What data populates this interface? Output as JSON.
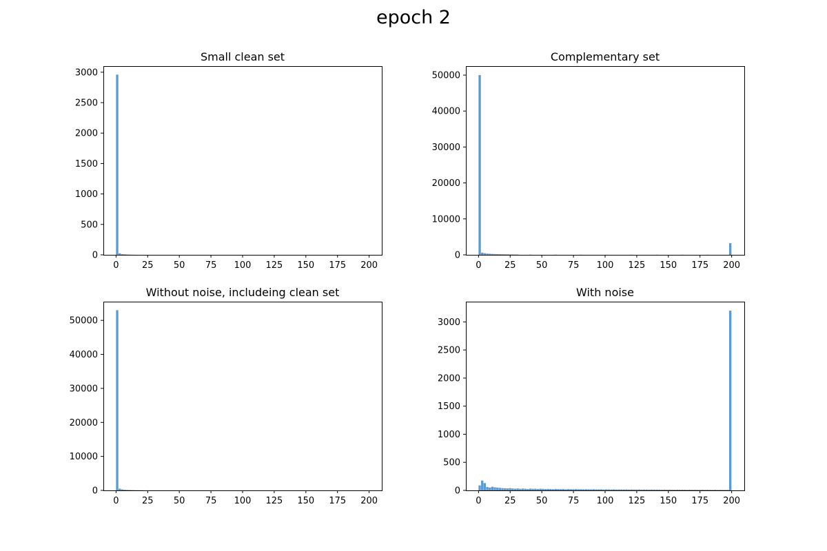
{
  "figure": {
    "title": "epoch 2"
  },
  "chart_data": [
    {
      "type": "bar",
      "title": "Small clean set",
      "xlabel": "",
      "ylabel": "",
      "xlim": [
        -10,
        210
      ],
      "ylim": [
        0,
        3100
      ],
      "xticks": [
        0,
        25,
        50,
        75,
        100,
        125,
        150,
        175,
        200
      ],
      "yticks": [
        0,
        500,
        1000,
        1500,
        2000,
        2500,
        3000
      ],
      "bin_width": 2,
      "bins": [
        {
          "x": 0,
          "y": 2960
        },
        {
          "x": 2,
          "y": 25
        },
        {
          "x": 4,
          "y": 10
        },
        {
          "x": 6,
          "y": 8
        },
        {
          "x": 8,
          "y": 5
        },
        {
          "x": 10,
          "y": 3
        },
        {
          "x": 12,
          "y": 2
        },
        {
          "x": 14,
          "y": 1
        }
      ],
      "color": "#5b9bd0"
    },
    {
      "type": "bar",
      "title": "Complementary set",
      "xlabel": "",
      "ylabel": "",
      "xlim": [
        -10,
        210
      ],
      "ylim": [
        0,
        52500
      ],
      "xticks": [
        0,
        25,
        50,
        75,
        100,
        125,
        150,
        175,
        200
      ],
      "yticks": [
        0,
        10000,
        20000,
        30000,
        40000,
        50000
      ],
      "bin_width": 2,
      "bins": [
        {
          "x": 0,
          "y": 50000
        },
        {
          "x": 2,
          "y": 600
        },
        {
          "x": 4,
          "y": 450
        },
        {
          "x": 6,
          "y": 350
        },
        {
          "x": 8,
          "y": 300
        },
        {
          "x": 10,
          "y": 250
        },
        {
          "x": 12,
          "y": 230
        },
        {
          "x": 14,
          "y": 200
        },
        {
          "x": 16,
          "y": 180
        },
        {
          "x": 18,
          "y": 160
        },
        {
          "x": 20,
          "y": 150
        },
        {
          "x": 22,
          "y": 140
        },
        {
          "x": 24,
          "y": 120
        },
        {
          "x": 26,
          "y": 100
        },
        {
          "x": 28,
          "y": 90
        },
        {
          "x": 30,
          "y": 80
        },
        {
          "x": 40,
          "y": 60
        },
        {
          "x": 60,
          "y": 50
        },
        {
          "x": 80,
          "y": 45
        },
        {
          "x": 100,
          "y": 40
        },
        {
          "x": 120,
          "y": 35
        },
        {
          "x": 140,
          "y": 35
        },
        {
          "x": 160,
          "y": 30
        },
        {
          "x": 180,
          "y": 30
        },
        {
          "x": 198,
          "y": 3250
        }
      ],
      "color": "#5b9bd0"
    },
    {
      "type": "bar",
      "title": "Without noise, includeing clean set",
      "xlabel": "",
      "ylabel": "",
      "xlim": [
        -10,
        210
      ],
      "ylim": [
        0,
        55500
      ],
      "xticks": [
        0,
        25,
        50,
        75,
        100,
        125,
        150,
        175,
        200
      ],
      "yticks": [
        0,
        10000,
        20000,
        30000,
        40000,
        50000
      ],
      "bin_width": 2,
      "bins": [
        {
          "x": 0,
          "y": 53000
        },
        {
          "x": 2,
          "y": 500
        },
        {
          "x": 4,
          "y": 300
        },
        {
          "x": 6,
          "y": 200
        },
        {
          "x": 8,
          "y": 150
        },
        {
          "x": 10,
          "y": 120
        },
        {
          "x": 12,
          "y": 100
        },
        {
          "x": 14,
          "y": 80
        },
        {
          "x": 16,
          "y": 70
        },
        {
          "x": 18,
          "y": 60
        },
        {
          "x": 20,
          "y": 50
        }
      ],
      "color": "#5b9bd0"
    },
    {
      "type": "bar",
      "title": "With noise",
      "xlabel": "",
      "ylabel": "",
      "xlim": [
        -10,
        210
      ],
      "ylim": [
        0,
        3360
      ],
      "xticks": [
        0,
        25,
        50,
        75,
        100,
        125,
        150,
        175,
        200
      ],
      "yticks": [
        0,
        500,
        1000,
        1500,
        2000,
        2500,
        3000
      ],
      "bin_width": 2,
      "bins": [
        {
          "x": 0,
          "y": 90
        },
        {
          "x": 2,
          "y": 175
        },
        {
          "x": 4,
          "y": 130
        },
        {
          "x": 6,
          "y": 60
        },
        {
          "x": 8,
          "y": 50
        },
        {
          "x": 10,
          "y": 65
        },
        {
          "x": 12,
          "y": 55
        },
        {
          "x": 14,
          "y": 50
        },
        {
          "x": 16,
          "y": 45
        },
        {
          "x": 18,
          "y": 40
        },
        {
          "x": 20,
          "y": 38
        },
        {
          "x": 22,
          "y": 36
        },
        {
          "x": 24,
          "y": 40
        },
        {
          "x": 26,
          "y": 34
        },
        {
          "x": 28,
          "y": 30
        },
        {
          "x": 30,
          "y": 35
        },
        {
          "x": 32,
          "y": 28
        },
        {
          "x": 34,
          "y": 33
        },
        {
          "x": 36,
          "y": 30
        },
        {
          "x": 38,
          "y": 25
        },
        {
          "x": 40,
          "y": 32
        },
        {
          "x": 42,
          "y": 28
        },
        {
          "x": 44,
          "y": 30
        },
        {
          "x": 46,
          "y": 26
        },
        {
          "x": 48,
          "y": 30
        },
        {
          "x": 50,
          "y": 28
        },
        {
          "x": 52,
          "y": 24
        },
        {
          "x": 54,
          "y": 27
        },
        {
          "x": 56,
          "y": 25
        },
        {
          "x": 58,
          "y": 22
        },
        {
          "x": 60,
          "y": 26
        },
        {
          "x": 62,
          "y": 24
        },
        {
          "x": 64,
          "y": 22
        },
        {
          "x": 66,
          "y": 25
        },
        {
          "x": 68,
          "y": 20
        },
        {
          "x": 70,
          "y": 24
        },
        {
          "x": 72,
          "y": 22
        },
        {
          "x": 74,
          "y": 21
        },
        {
          "x": 76,
          "y": 23
        },
        {
          "x": 78,
          "y": 20
        },
        {
          "x": 80,
          "y": 22
        },
        {
          "x": 82,
          "y": 19
        },
        {
          "x": 84,
          "y": 21
        },
        {
          "x": 86,
          "y": 20
        },
        {
          "x": 88,
          "y": 18
        },
        {
          "x": 90,
          "y": 21
        },
        {
          "x": 92,
          "y": 19
        },
        {
          "x": 94,
          "y": 18
        },
        {
          "x": 96,
          "y": 20
        },
        {
          "x": 98,
          "y": 17
        },
        {
          "x": 100,
          "y": 19
        },
        {
          "x": 102,
          "y": 18
        },
        {
          "x": 104,
          "y": 17
        },
        {
          "x": 106,
          "y": 19
        },
        {
          "x": 108,
          "y": 16
        },
        {
          "x": 110,
          "y": 18
        },
        {
          "x": 112,
          "y": 17
        },
        {
          "x": 114,
          "y": 16
        },
        {
          "x": 116,
          "y": 18
        },
        {
          "x": 118,
          "y": 15
        },
        {
          "x": 120,
          "y": 17
        },
        {
          "x": 122,
          "y": 16
        },
        {
          "x": 124,
          "y": 15
        },
        {
          "x": 126,
          "y": 17
        },
        {
          "x": 128,
          "y": 14
        },
        {
          "x": 130,
          "y": 16
        },
        {
          "x": 132,
          "y": 15
        },
        {
          "x": 134,
          "y": 14
        },
        {
          "x": 136,
          "y": 16
        },
        {
          "x": 138,
          "y": 14
        },
        {
          "x": 140,
          "y": 15
        },
        {
          "x": 142,
          "y": 14
        },
        {
          "x": 144,
          "y": 13
        },
        {
          "x": 146,
          "y": 15
        },
        {
          "x": 148,
          "y": 13
        },
        {
          "x": 150,
          "y": 14
        },
        {
          "x": 152,
          "y": 13
        },
        {
          "x": 154,
          "y": 12
        },
        {
          "x": 156,
          "y": 14
        },
        {
          "x": 158,
          "y": 12
        },
        {
          "x": 160,
          "y": 13
        },
        {
          "x": 162,
          "y": 12
        },
        {
          "x": 164,
          "y": 11
        },
        {
          "x": 166,
          "y": 13
        },
        {
          "x": 168,
          "y": 11
        },
        {
          "x": 170,
          "y": 12
        },
        {
          "x": 172,
          "y": 11
        },
        {
          "x": 174,
          "y": 10
        },
        {
          "x": 176,
          "y": 12
        },
        {
          "x": 178,
          "y": 10
        },
        {
          "x": 180,
          "y": 11
        },
        {
          "x": 182,
          "y": 10
        },
        {
          "x": 184,
          "y": 10
        },
        {
          "x": 186,
          "y": 11
        },
        {
          "x": 188,
          "y": 9
        },
        {
          "x": 190,
          "y": 10
        },
        {
          "x": 192,
          "y": 9
        },
        {
          "x": 194,
          "y": 9
        },
        {
          "x": 196,
          "y": 10
        },
        {
          "x": 198,
          "y": 3200
        }
      ],
      "color": "#5b9bd0"
    }
  ]
}
